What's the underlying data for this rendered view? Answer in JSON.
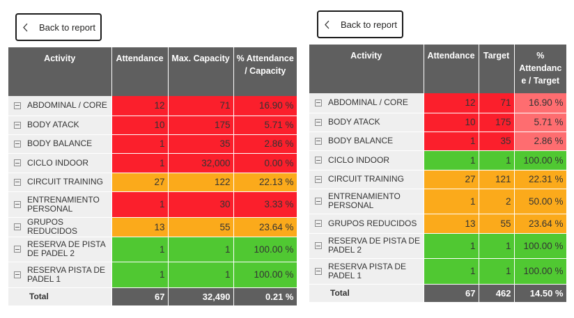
{
  "colors": {
    "red": "#fb1f2c",
    "red_light": "#fe6d70",
    "orange": "#fbaa1b",
    "green": "#50c832",
    "header": "#5f5f5f"
  },
  "left": {
    "back_label": "Back to report",
    "columns": [
      "Activity",
      "Attendance",
      "Max. Capacity",
      "% Attendance / Capacity"
    ],
    "rows": [
      {
        "activity": "ABDOMINAL / CORE",
        "attendance": "12",
        "capacity": "71",
        "pct": "16.90 %",
        "color": "red"
      },
      {
        "activity": "BODY ATACK",
        "attendance": "10",
        "capacity": "175",
        "pct": "5.71 %",
        "color": "red"
      },
      {
        "activity": "BODY BALANCE",
        "attendance": "1",
        "capacity": "35",
        "pct": "2.86 %",
        "color": "red"
      },
      {
        "activity": "CICLO INDOOR",
        "attendance": "1",
        "capacity": "32,000",
        "pct": "0.00 %",
        "color": "red"
      },
      {
        "activity": "CIRCUIT TRAINING",
        "attendance": "27",
        "capacity": "122",
        "pct": "22.13 %",
        "color": "orange"
      },
      {
        "activity": "ENTRENAMIENTO PERSONAL",
        "attendance": "1",
        "capacity": "30",
        "pct": "3.33 %",
        "color": "red"
      },
      {
        "activity": "GRUPOS REDUCIDOS",
        "attendance": "13",
        "capacity": "55",
        "pct": "23.64 %",
        "color": "orange"
      },
      {
        "activity": "RESERVA DE PISTA DE PADEL 2",
        "attendance": "1",
        "capacity": "1",
        "pct": "100.00 %",
        "color": "green"
      },
      {
        "activity": "RESERVA PISTA DE PADEL 1",
        "attendance": "1",
        "capacity": "1",
        "pct": "100.00 %",
        "color": "green"
      }
    ],
    "total": {
      "label": "Total",
      "attendance": "67",
      "capacity": "32,490",
      "pct": "0.21 %"
    }
  },
  "right": {
    "back_label": "Back to report",
    "columns": [
      "Activity",
      "Attendance",
      "Target",
      "% Attendanc e / Target"
    ],
    "rows": [
      {
        "activity": "ABDOMINAL / CORE",
        "attendance": "12",
        "target": "71",
        "pct": "16.90 %",
        "color": "red",
        "pct_color": "red_light"
      },
      {
        "activity": "BODY ATACK",
        "attendance": "10",
        "target": "175",
        "pct": "5.71 %",
        "color": "red",
        "pct_color": "red_light"
      },
      {
        "activity": "BODY BALANCE",
        "attendance": "1",
        "target": "35",
        "pct": "2.86 %",
        "color": "red",
        "pct_color": "red_light"
      },
      {
        "activity": "CICLO INDOOR",
        "attendance": "1",
        "target": "1",
        "pct": "100.00 %",
        "color": "green",
        "pct_color": "green"
      },
      {
        "activity": "CIRCUIT TRAINING",
        "attendance": "27",
        "target": "121",
        "pct": "22.31 %",
        "color": "orange",
        "pct_color": "orange"
      },
      {
        "activity": "ENTRENAMIENTO PERSONAL",
        "attendance": "1",
        "target": "2",
        "pct": "50.00 %",
        "color": "orange",
        "pct_color": "orange"
      },
      {
        "activity": "GRUPOS REDUCIDOS",
        "attendance": "13",
        "target": "55",
        "pct": "23.64 %",
        "color": "orange",
        "pct_color": "orange"
      },
      {
        "activity": "RESERVA DE PISTA DE PADEL 2",
        "attendance": "1",
        "target": "1",
        "pct": "100.00 %",
        "color": "green",
        "pct_color": "green"
      },
      {
        "activity": "RESERVA PISTA DE PADEL 1",
        "attendance": "1",
        "target": "1",
        "pct": "100.00 %",
        "color": "green",
        "pct_color": "green"
      }
    ],
    "total": {
      "label": "Total",
      "attendance": "67",
      "target": "462",
      "pct": "14.50 %"
    }
  }
}
